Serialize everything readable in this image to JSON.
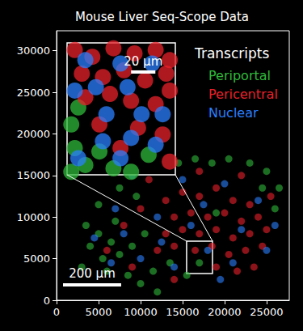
{
  "chart_data": {
    "type": "scatter",
    "title": "Mouse Liver Seq-Scope Data",
    "legend_title": "Transcripts",
    "legend": "upper right",
    "grid": false,
    "xlim": [
      0,
      27700
    ],
    "xticks": [
      0,
      5000,
      10000,
      15000,
      20000,
      25000
    ],
    "ylim": [
      0,
      32400
    ],
    "yticks": [
      0,
      5000,
      10000,
      15000,
      20000,
      25000,
      30000
    ],
    "scale_bar": {
      "label": "200 µm",
      "x": 770,
      "y": 1850,
      "length": 6920
    },
    "series": [
      {
        "name": "Periportal",
        "color": "#2fb83a",
        "points": [
          [
            3500,
            9000
          ],
          [
            5000,
            8000
          ],
          [
            4000,
            6500
          ],
          [
            6500,
            7000
          ],
          [
            5500,
            5000
          ],
          [
            7500,
            5500
          ],
          [
            3000,
            4000
          ],
          [
            6000,
            3500
          ],
          [
            8500,
            3000
          ],
          [
            10000,
            2000
          ],
          [
            11500,
            3500
          ],
          [
            9000,
            6500
          ],
          [
            10500,
            8000
          ],
          [
            7000,
            9500
          ],
          [
            12000,
            1000
          ],
          [
            13500,
            4500
          ],
          [
            15500,
            3000
          ],
          [
            17000,
            4500
          ],
          [
            9500,
            12500
          ],
          [
            12500,
            15500
          ],
          [
            14500,
            16500
          ],
          [
            16500,
            17000
          ],
          [
            18500,
            16500
          ],
          [
            20500,
            17000
          ],
          [
            23000,
            16500
          ],
          [
            25000,
            15500
          ],
          [
            26500,
            13500
          ],
          [
            26000,
            11000
          ],
          [
            24500,
            13500
          ],
          [
            5000,
            11500
          ],
          [
            7500,
            13500
          ],
          [
            19000,
            10500
          ]
        ]
      },
      {
        "name": "Pericentral",
        "color": "#e8202a",
        "points": [
          [
            13000,
            12000
          ],
          [
            15000,
            13000
          ],
          [
            17000,
            12500
          ],
          [
            19000,
            13500
          ],
          [
            21000,
            12000
          ],
          [
            23000,
            11500
          ],
          [
            14000,
            10000
          ],
          [
            16000,
            10500
          ],
          [
            18000,
            10000
          ],
          [
            20000,
            10500
          ],
          [
            22000,
            9500
          ],
          [
            24000,
            10000
          ],
          [
            13000,
            8000
          ],
          [
            15000,
            8500
          ],
          [
            17000,
            8000
          ],
          [
            19000,
            8500
          ],
          [
            21000,
            7500
          ],
          [
            23000,
            8000
          ],
          [
            25000,
            8500
          ],
          [
            12000,
            6000
          ],
          [
            14000,
            6500
          ],
          [
            16500,
            6000
          ],
          [
            18500,
            6500
          ],
          [
            20500,
            5500
          ],
          [
            22500,
            6000
          ],
          [
            24500,
            6500
          ],
          [
            19000,
            4000
          ],
          [
            21500,
            3500
          ],
          [
            23500,
            4000
          ],
          [
            10000,
            11000
          ],
          [
            8000,
            9000
          ],
          [
            11000,
            14500
          ],
          [
            17000,
            15500
          ],
          [
            22000,
            15000
          ],
          [
            6000,
            6000
          ],
          [
            9000,
            4000
          ],
          [
            25500,
            12500
          ],
          [
            14000,
            2500
          ]
        ]
      },
      {
        "name": "Nuclear",
        "color": "#2a7fff",
        "points": [
          [
            4500,
            7500
          ],
          [
            8000,
            8000
          ],
          [
            12000,
            10000
          ],
          [
            16000,
            9000
          ],
          [
            20000,
            14000
          ],
          [
            24000,
            12000
          ],
          [
            18000,
            6000
          ],
          [
            14000,
            4000
          ],
          [
            10000,
            5000
          ],
          [
            6500,
            4500
          ],
          [
            22000,
            8500
          ],
          [
            26000,
            9000
          ],
          [
            15000,
            14500
          ],
          [
            9000,
            15000
          ],
          [
            19500,
            2500
          ],
          [
            12500,
            7000
          ],
          [
            17500,
            11500
          ],
          [
            21000,
            4500
          ],
          [
            7000,
            11000
          ],
          [
            25000,
            6000
          ]
        ]
      }
    ],
    "inset": {
      "xlim": [
        15480,
        18560
      ],
      "ylim": [
        3210,
        7110
      ],
      "scale_bar": {
        "label": "20 µm",
        "x": 17300,
        "y": 6250,
        "length": 692
      },
      "series": [
        {
          "points": [
            [
              15600,
              4700
            ],
            [
              15700,
              4000
            ],
            [
              16000,
              3500
            ],
            [
              16400,
              3900
            ],
            [
              16800,
              3400
            ],
            [
              15600,
              3300
            ],
            [
              17300,
              3300
            ],
            [
              17800,
              3800
            ],
            [
              15800,
              5200
            ]
          ]
        },
        {
          "points": [
            [
              15700,
              6900
            ],
            [
              16200,
              6700
            ],
            [
              16800,
              6950
            ],
            [
              17400,
              6800
            ],
            [
              18000,
              6900
            ],
            [
              18400,
              6600
            ],
            [
              15900,
              6200
            ],
            [
              16500,
              6100
            ],
            [
              17100,
              6300
            ],
            [
              17700,
              6000
            ],
            [
              18300,
              6200
            ],
            [
              16000,
              5500
            ],
            [
              16700,
              5600
            ],
            [
              17300,
              5400
            ],
            [
              18000,
              5300
            ],
            [
              18400,
              5700
            ],
            [
              17500,
              4600
            ],
            [
              18200,
              4400
            ],
            [
              17000,
              4000
            ],
            [
              18400,
              3600
            ],
            [
              16400,
              4700
            ]
          ]
        },
        {
          "points": [
            [
              16000,
              6600
            ],
            [
              17000,
              6500
            ],
            [
              17900,
              6500
            ],
            [
              16300,
              5800
            ],
            [
              17200,
              5800
            ],
            [
              18200,
              5000
            ],
            [
              15700,
              5700
            ],
            [
              16600,
              5000
            ],
            [
              17600,
              5000
            ],
            [
              16500,
              4200
            ],
            [
              17300,
              4300
            ],
            [
              15800,
              3700
            ],
            [
              17000,
              3700
            ],
            [
              18000,
              4100
            ]
          ]
        }
      ]
    }
  }
}
